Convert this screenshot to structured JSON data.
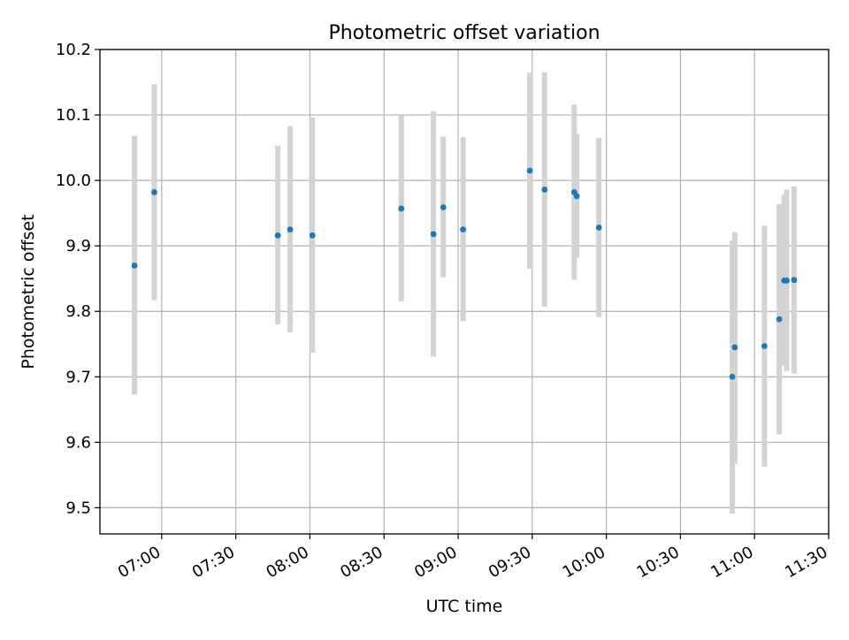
{
  "chart_data": {
    "type": "scatter",
    "title": "Photometric offset variation",
    "xlabel": "UTC time",
    "ylabel": "Photometric offset",
    "x_ticks": [
      "07:00",
      "07:30",
      "08:00",
      "08:30",
      "09:00",
      "09:30",
      "10:00",
      "10:30",
      "11:00",
      "11:30"
    ],
    "y_ticks": [
      "9.5",
      "9.6",
      "9.7",
      "9.8",
      "9.9",
      "10.0",
      "10.1",
      "10.2"
    ],
    "xlim": [
      "06:35",
      "11:30"
    ],
    "ylim": [
      9.46,
      10.2
    ],
    "grid": true,
    "colors": {
      "point": "#1f77b4",
      "errorbar": "#d3d3d3",
      "grid": "#b0b0b0"
    },
    "series": [
      {
        "points": [
          {
            "x": "06:49",
            "y": 9.87,
            "ylow": 9.673,
            "yhigh": 10.068
          },
          {
            "x": "06:57",
            "y": 9.982,
            "ylow": 9.817,
            "yhigh": 10.147
          },
          {
            "x": "07:47",
            "y": 9.916,
            "ylow": 9.78,
            "yhigh": 10.053
          },
          {
            "x": "07:52",
            "y": 9.925,
            "ylow": 9.768,
            "yhigh": 10.083
          },
          {
            "x": "08:01",
            "y": 9.916,
            "ylow": 9.737,
            "yhigh": 10.096
          },
          {
            "x": "08:37",
            "y": 9.957,
            "ylow": 9.815,
            "yhigh": 10.099
          },
          {
            "x": "08:50",
            "y": 9.918,
            "ylow": 9.731,
            "yhigh": 10.106
          },
          {
            "x": "08:54",
            "y": 9.959,
            "ylow": 9.852,
            "yhigh": 10.067
          },
          {
            "x": "09:02",
            "y": 9.925,
            "ylow": 9.785,
            "yhigh": 10.066
          },
          {
            "x": "09:29",
            "y": 10.015,
            "ylow": 9.865,
            "yhigh": 10.165
          },
          {
            "x": "09:35",
            "y": 9.986,
            "ylow": 9.807,
            "yhigh": 10.165
          },
          {
            "x": "09:47",
            "y": 9.982,
            "ylow": 9.848,
            "yhigh": 10.116
          },
          {
            "x": "09:48",
            "y": 9.976,
            "ylow": 9.882,
            "yhigh": 10.071
          },
          {
            "x": "09:57",
            "y": 9.928,
            "ylow": 9.791,
            "yhigh": 10.065
          },
          {
            "x": "10:51",
            "y": 9.7,
            "ylow": 9.491,
            "yhigh": 9.908
          },
          {
            "x": "10:52",
            "y": 9.745,
            "ylow": 9.567,
            "yhigh": 9.921
          },
          {
            "x": "11:04",
            "y": 9.747,
            "ylow": 9.563,
            "yhigh": 9.931
          },
          {
            "x": "11:10",
            "y": 9.788,
            "ylow": 9.612,
            "yhigh": 9.964
          },
          {
            "x": "11:12",
            "y": 9.847,
            "ylow": 9.717,
            "yhigh": 9.978
          },
          {
            "x": "11:13",
            "y": 9.847,
            "ylow": 9.709,
            "yhigh": 9.986
          },
          {
            "x": "11:16",
            "y": 9.848,
            "ylow": 9.705,
            "yhigh": 9.991
          }
        ]
      }
    ]
  }
}
